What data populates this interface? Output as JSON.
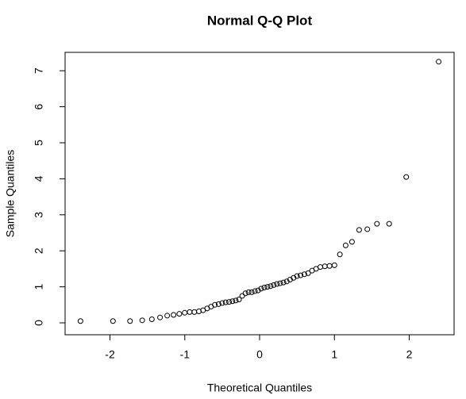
{
  "chart_data": {
    "type": "scatter",
    "title": "Normal Q-Q Plot",
    "xlabel": "Theoretical Quantiles",
    "ylabel": "Sample Quantiles",
    "x": [
      -2.394,
      -1.96,
      -1.732,
      -1.569,
      -1.44,
      -1.331,
      -1.235,
      -1.15,
      -1.073,
      -1.001,
      -0.935,
      -0.872,
      -0.812,
      -0.755,
      -0.701,
      -0.649,
      -0.598,
      -0.548,
      -0.5,
      -0.454,
      -0.408,
      -0.363,
      -0.319,
      -0.275,
      -0.232,
      -0.189,
      -0.147,
      -0.105,
      -0.063,
      -0.021,
      0.021,
      0.063,
      0.105,
      0.147,
      0.189,
      0.232,
      0.275,
      0.319,
      0.363,
      0.408,
      0.454,
      0.5,
      0.548,
      0.598,
      0.649,
      0.701,
      0.755,
      0.812,
      0.872,
      0.935,
      1.001,
      1.073,
      1.15,
      1.235,
      1.331,
      1.44,
      1.569,
      1.732,
      1.96,
      2.394
    ],
    "y": [
      0.05,
      0.05,
      0.05,
      0.07,
      0.1,
      0.15,
      0.2,
      0.22,
      0.25,
      0.28,
      0.3,
      0.3,
      0.32,
      0.35,
      0.4,
      0.45,
      0.5,
      0.52,
      0.55,
      0.57,
      0.58,
      0.6,
      0.62,
      0.65,
      0.75,
      0.82,
      0.85,
      0.85,
      0.88,
      0.9,
      0.95,
      0.98,
      1.0,
      1.02,
      1.05,
      1.08,
      1.1,
      1.12,
      1.15,
      1.2,
      1.25,
      1.3,
      1.32,
      1.35,
      1.38,
      1.45,
      1.5,
      1.55,
      1.57,
      1.58,
      1.6,
      1.9,
      2.15,
      2.25,
      2.58,
      2.6,
      2.75,
      2.75,
      4.05,
      7.25
    ],
    "xlim": [
      -2.6,
      2.6
    ],
    "ylim": [
      -0.33,
      7.51
    ],
    "xticks": [
      -2,
      -1,
      0,
      1,
      2
    ],
    "yticks": [
      0,
      1,
      2,
      3,
      4,
      5,
      6,
      7
    ],
    "color": "#000000"
  }
}
